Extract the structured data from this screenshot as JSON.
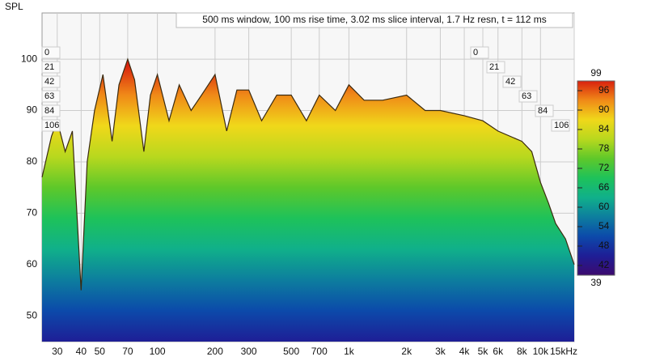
{
  "chart_data": {
    "type": "area",
    "title": "500 ms window, 100 ms rise time, 3.02 ms slice interval, 1.7 Hz resn, t = 112 ms",
    "y_label": "SPL",
    "x": [
      25,
      28,
      30,
      33,
      36,
      40,
      43,
      47,
      52,
      58,
      63,
      70,
      76,
      85,
      92,
      100,
      115,
      130,
      150,
      170,
      200,
      230,
      260,
      300,
      350,
      420,
      500,
      600,
      700,
      850,
      1000,
      1200,
      1500,
      2000,
      2500,
      3000,
      4000,
      5000,
      6000,
      8000,
      9000,
      10000,
      11000,
      12000,
      13500,
      15000
    ],
    "values": [
      77,
      85,
      88,
      82,
      86,
      55,
      80,
      90,
      97,
      84,
      95,
      100,
      96,
      82,
      93,
      97,
      88,
      95,
      90,
      93,
      97,
      86,
      94,
      94,
      88,
      93,
      93,
      88,
      93,
      90,
      95,
      92,
      92,
      93,
      90,
      90,
      89,
      88,
      86,
      84,
      82,
      76,
      72,
      68,
      65,
      60
    ],
    "xlim": [
      25,
      15000
    ],
    "log_x": true,
    "xticks": [
      30,
      40,
      50,
      70,
      100,
      200,
      300,
      500,
      700,
      {
        "value": 1000,
        "label": "1k"
      },
      {
        "value": 2000,
        "label": "2k"
      },
      {
        "value": 3000,
        "label": "3k"
      },
      {
        "value": 4000,
        "label": "4k"
      },
      {
        "value": 5000,
        "label": "5k"
      },
      {
        "value": 6000,
        "label": "6k"
      },
      {
        "value": 8000,
        "label": "8k"
      },
      {
        "value": 10000,
        "label": "10k"
      },
      {
        "value": 15000,
        "label": "15kHz"
      }
    ],
    "ylim": [
      45,
      109
    ],
    "yticks": [
      50,
      60,
      70,
      80,
      90,
      100
    ],
    "grid": true,
    "time_ticks": [
      0,
      21,
      42,
      63,
      84,
      106
    ],
    "colorbar": {
      "lim": [
        39,
        99
      ],
      "ticks": [
        39,
        42,
        48,
        54,
        60,
        66,
        72,
        78,
        84,
        90,
        96,
        99
      ],
      "colors": [
        "#3c0a6e",
        "#1e1e96",
        "#0c4aaa",
        "#0d7e9e",
        "#10b08a",
        "#1ec25a",
        "#5ec82a",
        "#b8d81e",
        "#f0d81a",
        "#f08a18",
        "#d8200e"
      ]
    }
  }
}
